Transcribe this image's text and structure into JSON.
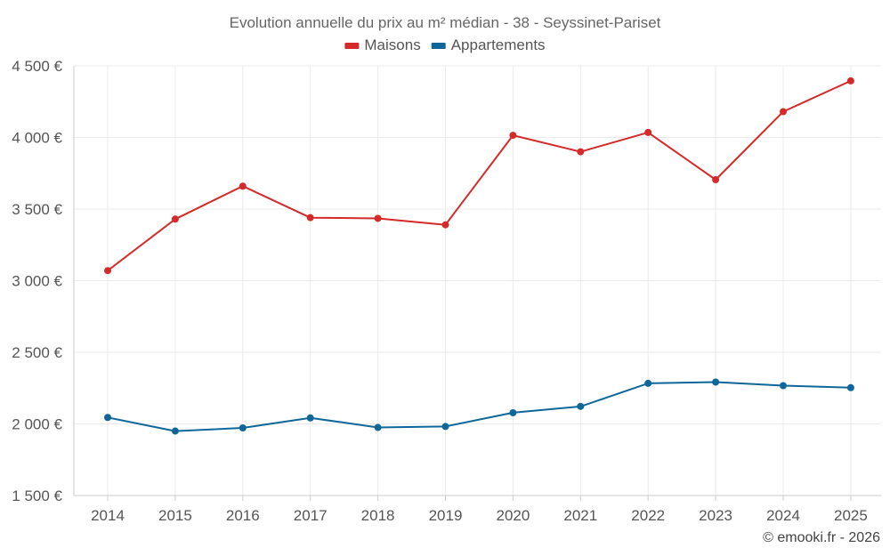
{
  "chart_data": {
    "type": "line",
    "title": "Evolution annuelle du prix au m² médian - 38 - Seyssinet-Pariset",
    "categories": [
      "2014",
      "2015",
      "2016",
      "2017",
      "2018",
      "2019",
      "2020",
      "2021",
      "2022",
      "2023",
      "2024",
      "2025"
    ],
    "series": [
      {
        "name": "Maisons",
        "color": "#d42a2a",
        "values": [
          3070,
          3430,
          3660,
          3440,
          3435,
          3390,
          4015,
          3900,
          4035,
          3705,
          4180,
          4395
        ]
      },
      {
        "name": "Appartements",
        "color": "#0f6699",
        "values": [
          2045,
          1950,
          1972,
          2042,
          1975,
          1982,
          2078,
          2122,
          2283,
          2292,
          2267,
          2253
        ]
      }
    ],
    "ylim": [
      1500,
      4500
    ],
    "yticks": [
      1500,
      2000,
      2500,
      3000,
      3500,
      4000,
      4500
    ],
    "ytick_labels": [
      "1 500 €",
      "2 000 €",
      "2 500 €",
      "3 000 €",
      "3 500 €",
      "4 000 €",
      "4 500 €"
    ],
    "xlabel": "",
    "ylabel": "",
    "legend_position": "top-center",
    "grid": true
  },
  "credit": "© emooki.fr - 2026"
}
